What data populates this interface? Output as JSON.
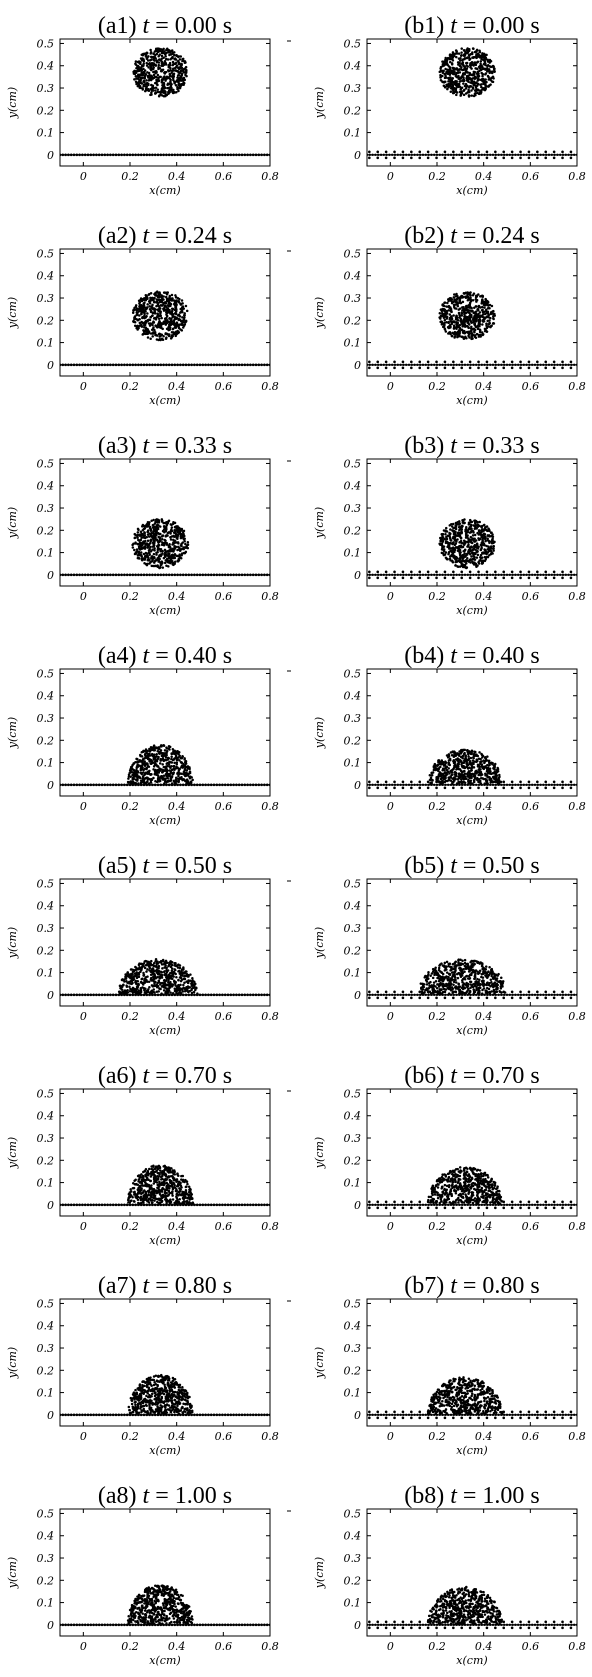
{
  "chart_data": [
    {
      "type": "scatter",
      "id": "a1",
      "title_prefix": "(a1) ",
      "title_var": "t",
      "title_value": " = 0.00 s",
      "xlabel": "x(cm)",
      "ylabel": "y(cm)",
      "xlim": [
        -0.1,
        0.8
      ],
      "ylim": [
        -0.05,
        0.52
      ],
      "xticks": [
        "0",
        "0.2",
        "0.4",
        "0.6",
        "0.8"
      ],
      "yticks": [
        "0",
        "0.1",
        "0.2",
        "0.3",
        "0.4",
        "0.5"
      ],
      "substrate": "flat",
      "droplet": {
        "cx": 0.33,
        "cy": 0.37,
        "rx": 0.12,
        "ry": 0.11
      }
    },
    {
      "type": "scatter",
      "id": "b1",
      "title_prefix": "(b1) ",
      "title_var": "t",
      "title_value": " = 0.00 s",
      "xlabel": "x(cm)",
      "ylabel": "y(cm)",
      "xlim": [
        -0.1,
        0.8
      ],
      "ylim": [
        -0.05,
        0.52
      ],
      "xticks": [
        "0",
        "0.2",
        "0.4",
        "0.6",
        "0.8"
      ],
      "yticks": [
        "0",
        "0.1",
        "0.2",
        "0.3",
        "0.4",
        "0.5"
      ],
      "substrate": "rough",
      "droplet": {
        "cx": 0.33,
        "cy": 0.37,
        "rx": 0.12,
        "ry": 0.11
      }
    },
    {
      "type": "scatter",
      "id": "a2",
      "title_prefix": "(a2) ",
      "title_var": "t",
      "title_value": " = 0.24 s",
      "xlabel": "x(cm)",
      "ylabel": "y(cm)",
      "xlim": [
        -0.1,
        0.8
      ],
      "ylim": [
        -0.05,
        0.52
      ],
      "xticks": [
        "0",
        "0.2",
        "0.4",
        "0.6",
        "0.8"
      ],
      "yticks": [
        "0",
        "0.1",
        "0.2",
        "0.3",
        "0.4",
        "0.5"
      ],
      "substrate": "flat",
      "droplet": {
        "cx": 0.33,
        "cy": 0.22,
        "rx": 0.12,
        "ry": 0.11
      }
    },
    {
      "type": "scatter",
      "id": "b2",
      "title_prefix": "(b2) ",
      "title_var": "t",
      "title_value": " = 0.24 s",
      "xlabel": "x(cm)",
      "ylabel": "y(cm)",
      "xlim": [
        -0.1,
        0.8
      ],
      "ylim": [
        -0.05,
        0.52
      ],
      "xticks": [
        "0",
        "0.2",
        "0.4",
        "0.6",
        "0.8"
      ],
      "yticks": [
        "0",
        "0.1",
        "0.2",
        "0.3",
        "0.4",
        "0.5"
      ],
      "substrate": "rough",
      "droplet": {
        "cx": 0.33,
        "cy": 0.22,
        "rx": 0.12,
        "ry": 0.11
      }
    },
    {
      "type": "scatter",
      "id": "a3",
      "title_prefix": "(a3) ",
      "title_var": "t",
      "title_value": " = 0.33 s",
      "xlabel": "x(cm)",
      "ylabel": "y(cm)",
      "xlim": [
        -0.1,
        0.8
      ],
      "ylim": [
        -0.05,
        0.52
      ],
      "xticks": [
        "0",
        "0.2",
        "0.4",
        "0.6",
        "0.8"
      ],
      "yticks": [
        "0",
        "0.1",
        "0.2",
        "0.3",
        "0.4",
        "0.5"
      ],
      "substrate": "flat",
      "droplet": {
        "cx": 0.33,
        "cy": 0.14,
        "rx": 0.12,
        "ry": 0.11
      }
    },
    {
      "type": "scatter",
      "id": "b3",
      "title_prefix": "(b3) ",
      "title_var": "t",
      "title_value": " = 0.33 s",
      "xlabel": "x(cm)",
      "ylabel": "y(cm)",
      "xlim": [
        -0.1,
        0.8
      ],
      "ylim": [
        -0.05,
        0.52
      ],
      "xticks": [
        "0",
        "0.2",
        "0.4",
        "0.6",
        "0.8"
      ],
      "yticks": [
        "0",
        "0.1",
        "0.2",
        "0.3",
        "0.4",
        "0.5"
      ],
      "substrate": "rough",
      "droplet": {
        "cx": 0.33,
        "cy": 0.14,
        "rx": 0.12,
        "ry": 0.11
      }
    },
    {
      "type": "scatter",
      "id": "a4",
      "title_prefix": "(a4) ",
      "title_var": "t",
      "title_value": " = 0.40 s",
      "xlabel": "x(cm)",
      "ylabel": "y(cm)",
      "xlim": [
        -0.1,
        0.8
      ],
      "ylim": [
        -0.05,
        0.52
      ],
      "xticks": [
        "0",
        "0.2",
        "0.4",
        "0.6",
        "0.8"
      ],
      "yticks": [
        "0",
        "0.1",
        "0.2",
        "0.3",
        "0.4",
        "0.5"
      ],
      "substrate": "flat",
      "droplet": {
        "cx": 0.33,
        "cy": 0.0,
        "rx": 0.14,
        "ry": 0.18
      }
    },
    {
      "type": "scatter",
      "id": "b4",
      "title_prefix": "(b4) ",
      "title_var": "t",
      "title_value": " = 0.40 s",
      "xlabel": "x(cm)",
      "ylabel": "y(cm)",
      "xlim": [
        -0.1,
        0.8
      ],
      "ylim": [
        -0.05,
        0.52
      ],
      "xticks": [
        "0",
        "0.2",
        "0.4",
        "0.6",
        "0.8"
      ],
      "yticks": [
        "0",
        "0.1",
        "0.2",
        "0.3",
        "0.4",
        "0.5"
      ],
      "substrate": "rough",
      "droplet": {
        "cx": 0.32,
        "cy": 0.0,
        "rx": 0.16,
        "ry": 0.16
      }
    },
    {
      "type": "scatter",
      "id": "a5",
      "title_prefix": "(a5) ",
      "title_var": "t",
      "title_value": " = 0.50 s",
      "xlabel": "x(cm)",
      "ylabel": "y(cm)",
      "xlim": [
        -0.1,
        0.8
      ],
      "ylim": [
        -0.05,
        0.52
      ],
      "xticks": [
        "0",
        "0.2",
        "0.4",
        "0.6",
        "0.8"
      ],
      "yticks": [
        "0",
        "0.1",
        "0.2",
        "0.3",
        "0.4",
        "0.5"
      ],
      "substrate": "flat",
      "droplet": {
        "cx": 0.32,
        "cy": 0.0,
        "rx": 0.17,
        "ry": 0.16
      }
    },
    {
      "type": "scatter",
      "id": "b5",
      "title_prefix": "(b5) ",
      "title_var": "t",
      "title_value": " = 0.50 s",
      "xlabel": "x(cm)",
      "ylabel": "y(cm)",
      "xlim": [
        -0.1,
        0.8
      ],
      "ylim": [
        -0.05,
        0.52
      ],
      "xticks": [
        "0",
        "0.2",
        "0.4",
        "0.6",
        "0.8"
      ],
      "yticks": [
        "0",
        "0.1",
        "0.2",
        "0.3",
        "0.4",
        "0.5"
      ],
      "substrate": "rough",
      "droplet": {
        "cx": 0.31,
        "cy": 0.0,
        "rx": 0.19,
        "ry": 0.16
      }
    },
    {
      "type": "scatter",
      "id": "a6",
      "title_prefix": "(a6) ",
      "title_var": "t",
      "title_value": " = 0.70 s",
      "xlabel": "x(cm)",
      "ylabel": "y(cm)",
      "xlim": [
        -0.1,
        0.8
      ],
      "ylim": [
        -0.05,
        0.52
      ],
      "xticks": [
        "0",
        "0.2",
        "0.4",
        "0.6",
        "0.8"
      ],
      "yticks": [
        "0",
        "0.1",
        "0.2",
        "0.3",
        "0.4",
        "0.5"
      ],
      "substrate": "flat",
      "droplet": {
        "cx": 0.33,
        "cy": 0.0,
        "rx": 0.14,
        "ry": 0.18
      }
    },
    {
      "type": "scatter",
      "id": "b6",
      "title_prefix": "(b6) ",
      "title_var": "t",
      "title_value": " = 0.70 s",
      "xlabel": "x(cm)",
      "ylabel": "y(cm)",
      "xlim": [
        -0.1,
        0.8
      ],
      "ylim": [
        -0.05,
        0.52
      ],
      "xticks": [
        "0",
        "0.2",
        "0.4",
        "0.6",
        "0.8"
      ],
      "yticks": [
        "0",
        "0.1",
        "0.2",
        "0.3",
        "0.4",
        "0.5"
      ],
      "substrate": "rough",
      "droplet": {
        "cx": 0.32,
        "cy": 0.0,
        "rx": 0.16,
        "ry": 0.17
      }
    },
    {
      "type": "scatter",
      "id": "a7",
      "title_prefix": "(a7) ",
      "title_var": "t",
      "title_value": " = 0.80 s",
      "xlabel": "x(cm)",
      "ylabel": "y(cm)",
      "xlim": [
        -0.1,
        0.8
      ],
      "ylim": [
        -0.05,
        0.52
      ],
      "xticks": [
        "0",
        "0.2",
        "0.4",
        "0.6",
        "0.8"
      ],
      "yticks": [
        "0",
        "0.1",
        "0.2",
        "0.3",
        "0.4",
        "0.5"
      ],
      "substrate": "flat",
      "droplet": {
        "cx": 0.33,
        "cy": 0.0,
        "rx": 0.14,
        "ry": 0.18
      }
    },
    {
      "type": "scatter",
      "id": "b7",
      "title_prefix": "(b7) ",
      "title_var": "t",
      "title_value": " = 0.80 s",
      "xlabel": "x(cm)",
      "ylabel": "y(cm)",
      "xlim": [
        -0.1,
        0.8
      ],
      "ylim": [
        -0.05,
        0.52
      ],
      "xticks": [
        "0",
        "0.2",
        "0.4",
        "0.6",
        "0.8"
      ],
      "yticks": [
        "0",
        "0.1",
        "0.2",
        "0.3",
        "0.4",
        "0.5"
      ],
      "substrate": "rough",
      "droplet": {
        "cx": 0.32,
        "cy": 0.0,
        "rx": 0.16,
        "ry": 0.17
      }
    },
    {
      "type": "scatter",
      "id": "a8",
      "title_prefix": "(a8) ",
      "title_var": "t",
      "title_value": " = 1.00 s",
      "xlabel": "x(cm)",
      "ylabel": "y(cm)",
      "xlim": [
        -0.1,
        0.8
      ],
      "ylim": [
        -0.05,
        0.52
      ],
      "xticks": [
        "0",
        "0.2",
        "0.4",
        "0.6",
        "0.8"
      ],
      "yticks": [
        "0",
        "0.1",
        "0.2",
        "0.3",
        "0.4",
        "0.5"
      ],
      "substrate": "flat",
      "droplet": {
        "cx": 0.33,
        "cy": 0.0,
        "rx": 0.14,
        "ry": 0.18
      }
    },
    {
      "type": "scatter",
      "id": "b8",
      "title_prefix": "(b8) ",
      "title_var": "t",
      "title_value": " = 1.00 s",
      "xlabel": "x(cm)",
      "ylabel": "y(cm)",
      "xlim": [
        -0.1,
        0.8
      ],
      "ylim": [
        -0.05,
        0.52
      ],
      "xticks": [
        "0",
        "0.2",
        "0.4",
        "0.6",
        "0.8"
      ],
      "yticks": [
        "0",
        "0.1",
        "0.2",
        "0.3",
        "0.4",
        "0.5"
      ],
      "substrate": "rough",
      "droplet": {
        "cx": 0.32,
        "cy": 0.0,
        "rx": 0.16,
        "ry": 0.17
      }
    }
  ]
}
